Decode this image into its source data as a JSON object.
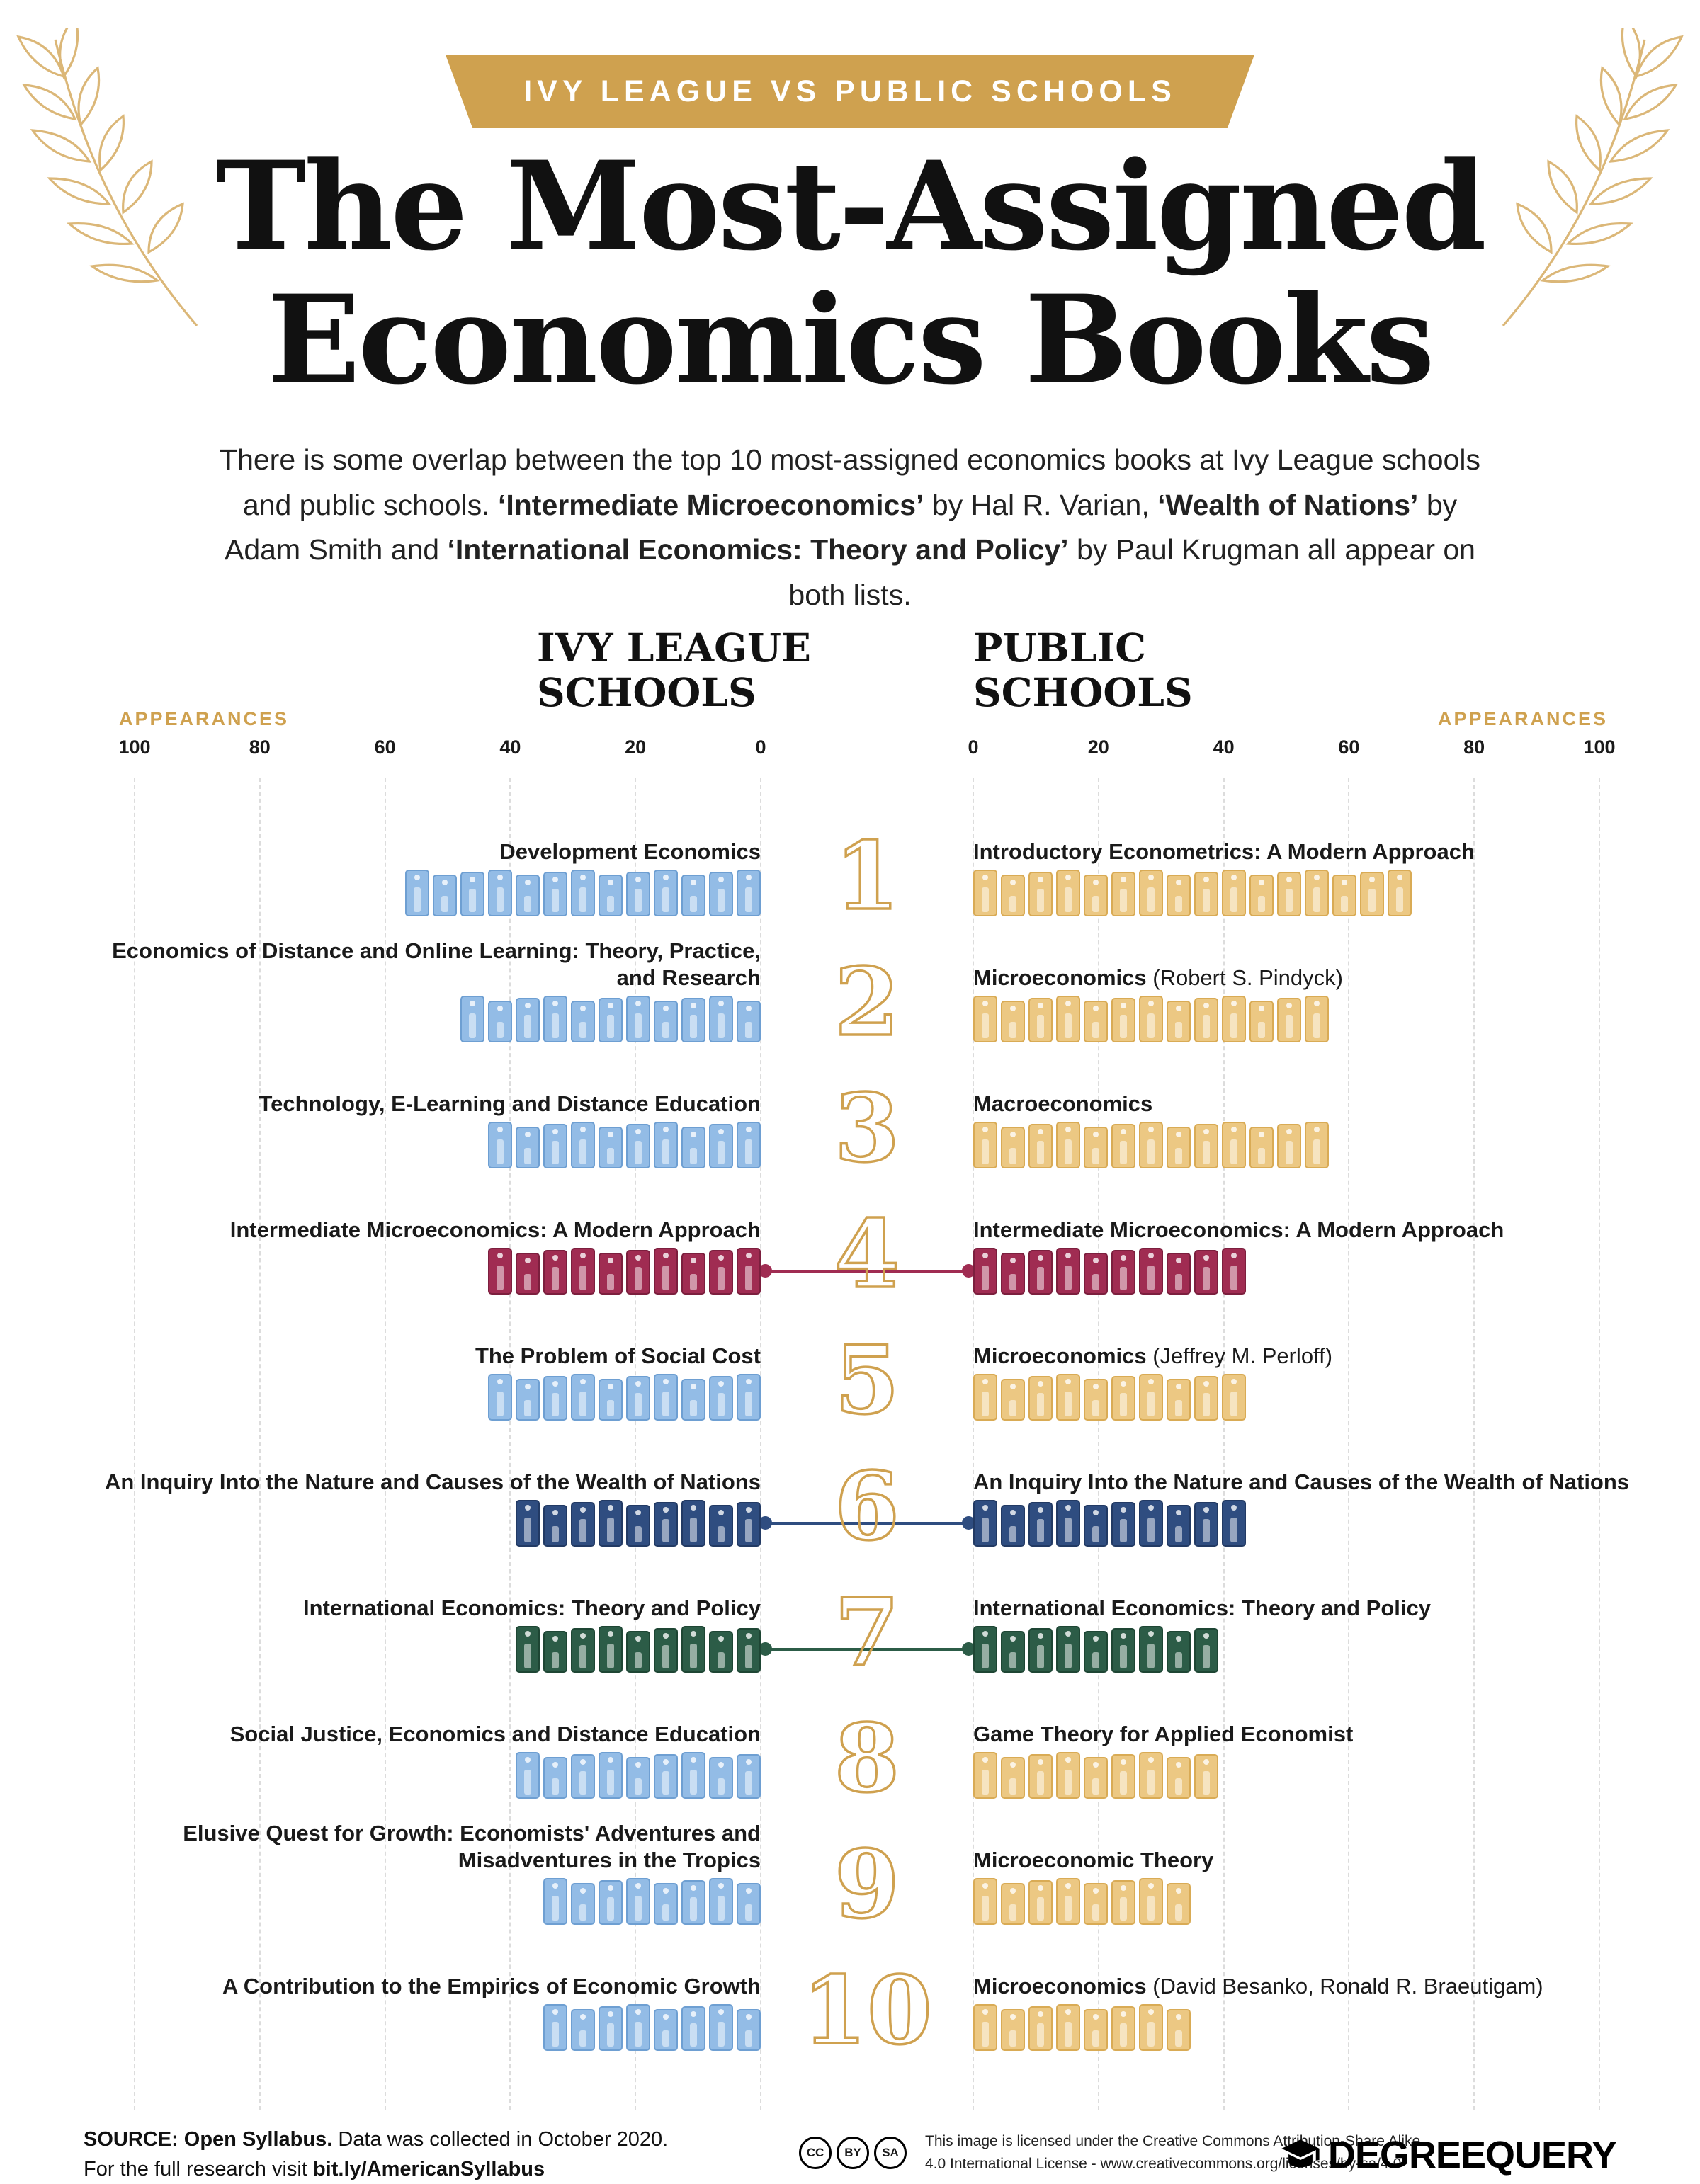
{
  "banner": {
    "label": "IVY LEAGUE VS PUBLIC SCHOOLS"
  },
  "title": {
    "line1": "The Most-Assigned",
    "line2": "Economics Books"
  },
  "intro_segments": [
    {
      "text": "There is some overlap between the top 10 most-assigned economics books at Ivy League schools and public schools. ",
      "bold": false
    },
    {
      "text": "‘Intermediate Microeconomics’",
      "bold": true
    },
    {
      "text": " by Hal R. Varian, ",
      "bold": false
    },
    {
      "text": "‘Wealth of Nations’",
      "bold": true
    },
    {
      "text": " by Adam Smith and ",
      "bold": false
    },
    {
      "text": "‘International Economics: Theory and Policy’",
      "bold": true
    },
    {
      "text": " by Paul Krugman all appear on both lists.",
      "bold": false
    }
  ],
  "columns": {
    "left": {
      "header": "IVY LEAGUE\nSCHOOLS"
    },
    "right": {
      "header": "PUBLIC\nSCHOOLS"
    }
  },
  "axis": {
    "label": "APPEARANCES",
    "left_ticks": [
      100,
      80,
      60,
      40,
      20,
      0
    ],
    "right_ticks": [
      0,
      20,
      40,
      60,
      80,
      100
    ],
    "max": 100
  },
  "chart_data": {
    "type": "bar",
    "orientation": "butterfly",
    "unit": "appearances",
    "title": "The Most-Assigned Economics Books",
    "xlim": [
      0,
      100
    ],
    "grid": "dashed-vertical",
    "categories": [
      1,
      2,
      3,
      4,
      5,
      6,
      7,
      8,
      9,
      10
    ],
    "connected_ranks": [
      4,
      6,
      7
    ],
    "series": [
      {
        "name": "Ivy League Schools",
        "entries": [
          {
            "title": "Development Economics",
            "suffix": "",
            "value": 54,
            "color": "blue"
          },
          {
            "title": "Economics of Distance and Online Learning: Theory, Practice, and Research",
            "suffix": "",
            "value": 46,
            "color": "blue"
          },
          {
            "title": "Technology, E-Learning and Distance Education",
            "suffix": "",
            "value": 45,
            "color": "blue"
          },
          {
            "title": "Intermediate Microeconomics: A Modern Approach",
            "suffix": "",
            "value": 42,
            "color": "maroon"
          },
          {
            "title": "The Problem of Social Cost",
            "suffix": "",
            "value": 41,
            "color": "blue"
          },
          {
            "title": "An Inquiry Into the Nature and Causes of the Wealth of Nations",
            "suffix": "",
            "value": 40,
            "color": "navy"
          },
          {
            "title": "International Economics: Theory and Policy",
            "suffix": "",
            "value": 39,
            "color": "green"
          },
          {
            "title": "Social Justice, Economics and Distance Education",
            "suffix": "",
            "value": 37,
            "color": "blue"
          },
          {
            "title": "Elusive Quest for Growth: Economists' Adventures and Misadventures in the Tropics",
            "suffix": "",
            "value": 36,
            "color": "blue"
          },
          {
            "title": "A Contribution to the Empirics of Economic Growth",
            "suffix": "",
            "value": 35,
            "color": "blue"
          }
        ]
      },
      {
        "name": "Public Schools",
        "entries": [
          {
            "title": "Introductory Econometrics: A Modern Approach",
            "suffix": "",
            "value": 68,
            "color": "gold"
          },
          {
            "title": "Microeconomics",
            "suffix": "(Robert S. Pindyck)",
            "value": 58,
            "color": "gold"
          },
          {
            "title": "Macroeconomics",
            "suffix": "",
            "value": 56,
            "color": "gold"
          },
          {
            "title": "Intermediate Microeconomics: A Modern Approach",
            "suffix": "",
            "value": 43,
            "color": "maroon"
          },
          {
            "title": "Microeconomics",
            "suffix": "(Jeffrey M. Perloff)",
            "value": 42,
            "color": "gold"
          },
          {
            "title": "An Inquiry Into the Nature and Causes of the Wealth of Nations",
            "suffix": "",
            "value": 41,
            "color": "navy"
          },
          {
            "title": "International Economics: Theory and Policy",
            "suffix": "",
            "value": 40,
            "color": "green"
          },
          {
            "title": "Game Theory for Applied Economist",
            "suffix": "",
            "value": 38,
            "color": "gold"
          },
          {
            "title": "Microeconomic Theory",
            "suffix": "",
            "value": 36,
            "color": "gold"
          },
          {
            "title": "Microeconomics",
            "suffix": "(David Besanko, Ronald R. Braeutigam)",
            "value": 35,
            "color": "gold"
          }
        ]
      }
    ]
  },
  "palette": {
    "accent_gold": "#cfa14f",
    "laurel": "#d8b06a",
    "blue": {
      "base": "#93bce6",
      "dark": "#6e9fd2"
    },
    "gold": {
      "base": "#ecc883",
      "dark": "#d9ab55"
    },
    "maroon": {
      "base": "#a02c52",
      "dark": "#7c1f3e"
    },
    "navy": {
      "base": "#2f4d80",
      "dark": "#223a64"
    },
    "green": {
      "base": "#2c5c47",
      "dark": "#1e4634"
    }
  },
  "footer": {
    "source_bold": "SOURCE: Open Syllabus.",
    "source_rest": " Data was collected in October 2020.",
    "research_prefix": "For the full research visit ",
    "research_bold": "bit.ly/AmericanSyllabus",
    "cc_badges": [
      "CC",
      "BY",
      "SA"
    ],
    "license_line1": "This image is licensed under the Creative Commons Attribution-Share Alike",
    "license_line2": "4.0 International License - www.creativecommons.org/licenses/by-sa/4.0",
    "logo_text": "DEGREEQUERY"
  }
}
